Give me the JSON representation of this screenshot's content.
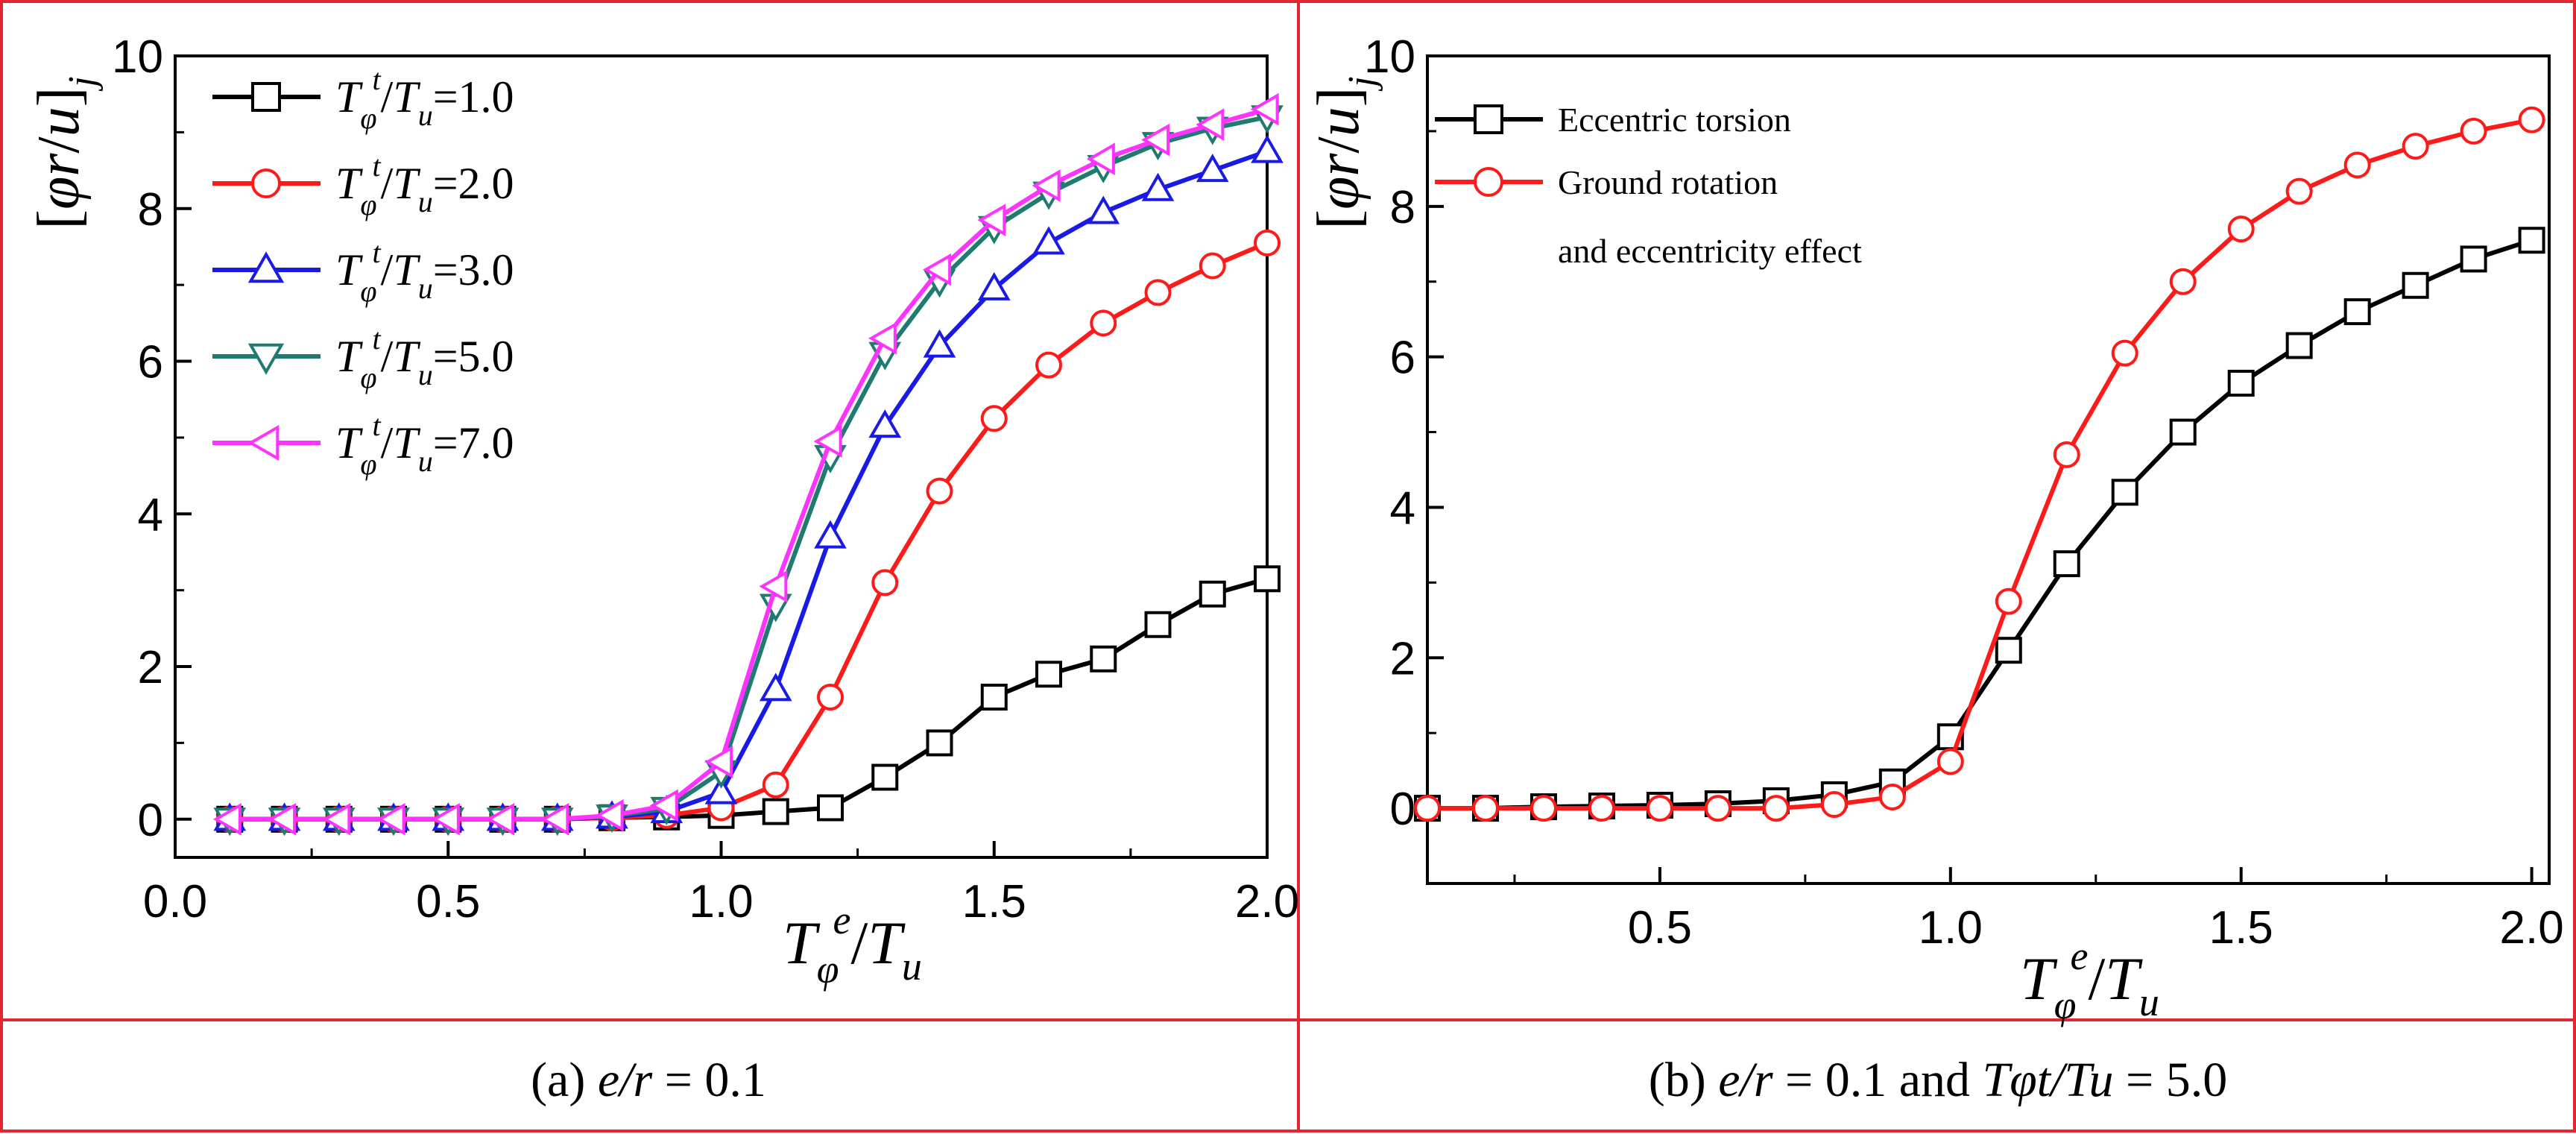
{
  "colors": {
    "frame": "#e32636",
    "s1": "#000000",
    "s2": "#ff1a1a",
    "s3": "#1a1ae6",
    "s5": "#1f7a70",
    "s7": "#ff33ff"
  },
  "chart_data": [
    {
      "type": "line",
      "caption": {
        "prefix": "(a) ",
        "ratio": "e/r",
        "rest": " = 0.1"
      },
      "xlabel": "Tφe/Tu",
      "ylabel": "[φr/u]j",
      "xlim": [
        0.0,
        2.0
      ],
      "ylim": [
        -0.5,
        10
      ],
      "xticks": [
        0.0,
        0.5,
        1.0,
        1.5,
        2.0
      ],
      "xtick_labels": [
        "0.0",
        "0.5",
        "1.0",
        "1.5",
        "2.0"
      ],
      "yticks": [
        0,
        2,
        4,
        6,
        8,
        10
      ],
      "ytick_labels": [
        "0",
        "2",
        "4",
        "6",
        "8",
        "10"
      ],
      "x": [
        0.1,
        0.2,
        0.3,
        0.4,
        0.5,
        0.6,
        0.7,
        0.8,
        0.9,
        1.0,
        1.1,
        1.2,
        1.3,
        1.4,
        1.5,
        1.6,
        1.7,
        1.8,
        1.9,
        2.0
      ],
      "series": [
        {
          "name": "Tφt/Tu=1.0",
          "value_text": "=1.0",
          "marker": "square",
          "color": "#000000",
          "values": [
            0,
            0,
            0,
            0,
            0,
            0,
            0,
            0.02,
            0.03,
            0.05,
            0.1,
            0.15,
            0.55,
            1.0,
            1.6,
            1.9,
            2.1,
            2.55,
            2.95,
            3.15
          ]
        },
        {
          "name": "Tφt/Tu=2.0",
          "value_text": "=2.0",
          "marker": "circle",
          "color": "#ff1a1a",
          "values": [
            0,
            0,
            0,
            0,
            0,
            0,
            0,
            0.02,
            0.05,
            0.15,
            0.45,
            1.6,
            3.1,
            4.3,
            5.25,
            5.95,
            6.5,
            6.9,
            7.25,
            7.55
          ]
        },
        {
          "name": "Tφt/Tu=3.0",
          "value_text": "=3.0",
          "marker": "triangle-up",
          "color": "#1a1ae6",
          "values": [
            0,
            0,
            0,
            0,
            0,
            0,
            0,
            0.03,
            0.1,
            0.35,
            1.7,
            3.7,
            5.15,
            6.2,
            6.95,
            7.55,
            7.95,
            8.25,
            8.5,
            8.75
          ]
        },
        {
          "name": "Tφt/Tu=5.0",
          "value_text": "=5.0",
          "marker": "triangle-down",
          "color": "#1f7a70",
          "values": [
            0,
            0,
            0,
            0,
            0,
            0,
            0,
            0.04,
            0.14,
            0.62,
            2.8,
            4.75,
            6.1,
            7.05,
            7.75,
            8.2,
            8.55,
            8.85,
            9.05,
            9.2
          ]
        },
        {
          "name": "Tφt/Tu=7.0",
          "value_text": "=7.0",
          "marker": "triangle-left",
          "color": "#ff33ff",
          "values": [
            0,
            0,
            0,
            0,
            0,
            0,
            0,
            0.05,
            0.18,
            0.75,
            3.05,
            4.95,
            6.3,
            7.2,
            7.85,
            8.3,
            8.65,
            8.9,
            9.1,
            9.3
          ]
        }
      ]
    },
    {
      "type": "line",
      "caption": {
        "prefix": "(b) ",
        "ratio": "e/r",
        "rest": " = 0.1 and ",
        "tratio": "Tφt/Tu",
        "tail": " = 5.0"
      },
      "xlabel": "Tφe/Tu",
      "ylabel": "[φr/u]j",
      "xlim": [
        0.1,
        2.03
      ],
      "ylim": [
        -1.0,
        10
      ],
      "xticks": [
        0.5,
        1.0,
        1.5,
        2.0
      ],
      "xtick_labels": [
        "0.5",
        "1.0",
        "1.5",
        "2.0"
      ],
      "yticks": [
        0,
        2,
        4,
        6,
        8,
        10
      ],
      "ytick_labels": [
        "0",
        "2",
        "4",
        "6",
        "8",
        "10"
      ],
      "x": [
        0.1,
        0.2,
        0.3,
        0.4,
        0.5,
        0.6,
        0.7,
        0.8,
        0.9,
        1.0,
        1.1,
        1.2,
        1.3,
        1.4,
        1.5,
        1.6,
        1.7,
        1.8,
        1.9,
        2.0
      ],
      "series": [
        {
          "name": "Eccentric torsion",
          "marker": "square",
          "color": "#000000",
          "values": [
            0,
            0,
            0.02,
            0.03,
            0.04,
            0.06,
            0.1,
            0.18,
            0.35,
            0.95,
            2.1,
            3.25,
            4.2,
            5.0,
            5.65,
            6.15,
            6.6,
            6.95,
            7.3,
            7.55
          ]
        },
        {
          "name": "Ground rotation and eccentricity effect",
          "name_lines": [
            "Ground rotation",
            "and eccentricity effect"
          ],
          "marker": "circle",
          "color": "#ff1a1a",
          "values": [
            0,
            0,
            0,
            0,
            0,
            0,
            0,
            0.05,
            0.15,
            0.62,
            2.75,
            4.7,
            6.05,
            7.0,
            7.7,
            8.2,
            8.55,
            8.8,
            9.0,
            9.15
          ]
        }
      ]
    }
  ]
}
